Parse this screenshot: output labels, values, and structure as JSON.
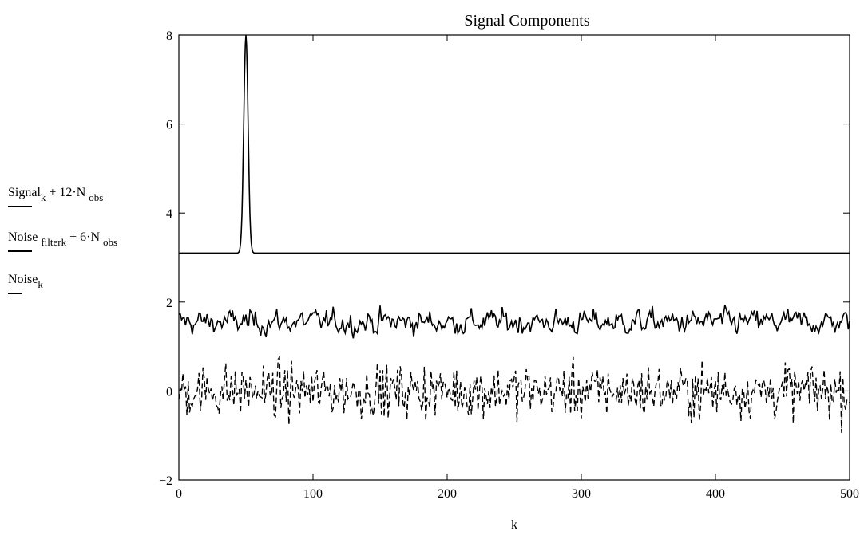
{
  "chart_data": {
    "type": "line",
    "title": "Signal Components",
    "xlabel": "k",
    "ylabel": "",
    "xlim": [
      0,
      500
    ],
    "ylim": [
      -2,
      8
    ],
    "x_ticks": [
      "0",
      "100",
      "200",
      "300",
      "400",
      "500"
    ],
    "y_ticks": [
      "-2",
      "0",
      "2",
      "4",
      "6",
      "8"
    ],
    "grid": false,
    "legend_position": "left",
    "series": [
      {
        "legend_parts": [
          "Signal",
          "k",
          " + 12·N ",
          "obs"
        ],
        "style": "solid",
        "baseline": 3.1,
        "peak": {
          "x": 50,
          "y": 8.0,
          "width": 5
        }
      },
      {
        "legend_parts": [
          "Noise ",
          "filter",
          "k",
          " + 6·N ",
          "obs"
        ],
        "style": "solid",
        "mean": 1.55,
        "min": 1.0,
        "max": 2.4
      },
      {
        "legend_parts": [
          "Noise",
          "k"
        ],
        "style": "dashed",
        "mean": 0.0,
        "min": -1.3,
        "max": 1.0
      }
    ]
  }
}
